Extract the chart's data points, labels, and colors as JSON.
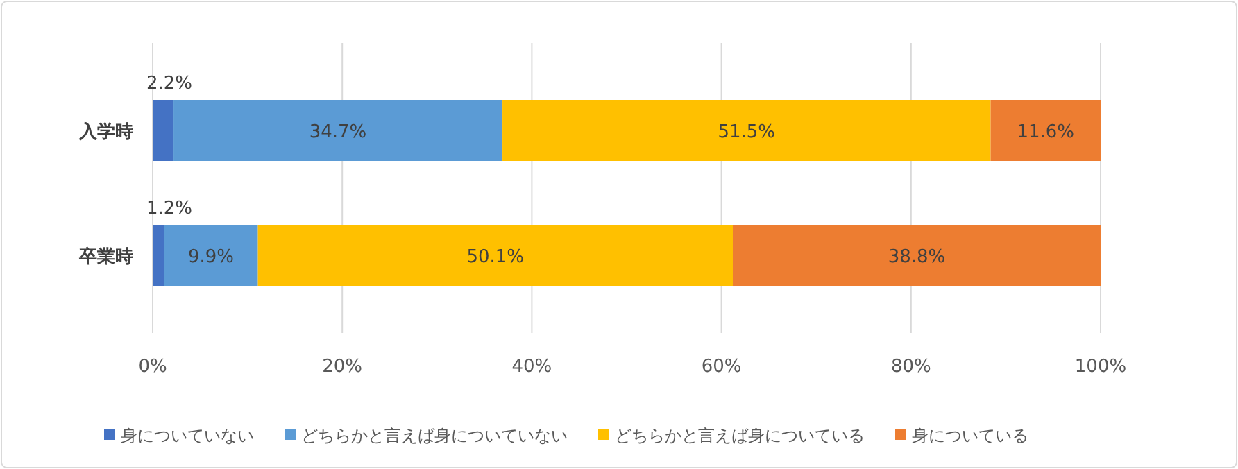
{
  "chart_data": {
    "type": "bar",
    "orientation": "horizontal",
    "stacked": true,
    "categories": [
      "入学時",
      "卒業時"
    ],
    "series": [
      {
        "name": "身についていない",
        "color": "#4472c4",
        "values": [
          2.2,
          1.2
        ],
        "value_labels": [
          "2.2%",
          "1.2%"
        ]
      },
      {
        "name": "どちらかと言えば身についていない",
        "color": "#5b9bd5",
        "values": [
          34.7,
          9.9
        ],
        "value_labels": [
          "34.7%",
          "9.9%"
        ]
      },
      {
        "name": "どちらかと言えば身についている",
        "color": "#ffc000",
        "values": [
          51.5,
          50.1
        ],
        "value_labels": [
          "51.5%",
          "50.1%"
        ]
      },
      {
        "name": "身についている",
        "color": "#ed7d31",
        "values": [
          11.6,
          38.8
        ],
        "value_labels": [
          "11.6%",
          "38.8%"
        ]
      }
    ],
    "xlim": [
      0,
      100
    ],
    "xticks": [
      {
        "value": 0,
        "label": "0%"
      },
      {
        "value": 20,
        "label": "20%"
      },
      {
        "value": 40,
        "label": "40%"
      },
      {
        "value": 60,
        "label": "60%"
      },
      {
        "value": 80,
        "label": "80%"
      },
      {
        "value": 100,
        "label": "100%"
      }
    ],
    "grid": "x",
    "legend": "bottom"
  }
}
